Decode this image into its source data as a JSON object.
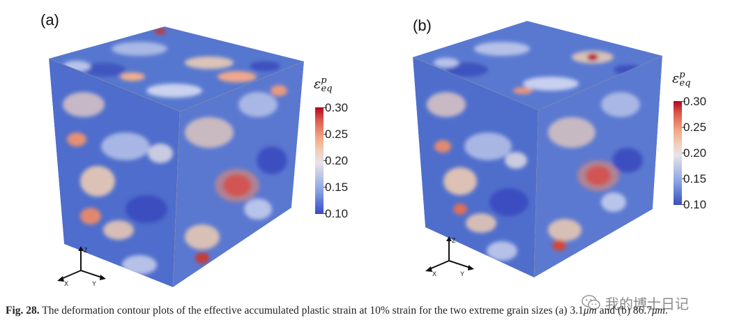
{
  "figure": {
    "panels": [
      {
        "label": "(a)"
      },
      {
        "label": "(b)"
      }
    ],
    "colorbar": {
      "title_base": "ε",
      "title_sup": "p",
      "title_sub": "eq",
      "ticks": [
        "0.30",
        "0.25",
        "0.20",
        "0.15",
        "0.10"
      ],
      "range": [
        0.1,
        0.3
      ],
      "colors": {
        "high": "#b40426",
        "mid": "#e8e4e8",
        "low": "#3b4cc0"
      }
    },
    "axes": {
      "z": "Z",
      "x": "X",
      "y": "Y"
    }
  },
  "caption": {
    "label": "Fig. 28.",
    "text_part1": " The deformation contour plots of the effective accumulated plastic strain at 10% strain for the two extreme grain sizes (a) 3.1",
    "unit1": "μm",
    "text_part2": " and (b) 86.7",
    "unit2": "μm",
    "text_end": "."
  },
  "watermark": {
    "text": "我的博士日记",
    "icon": "wechat-icon"
  }
}
